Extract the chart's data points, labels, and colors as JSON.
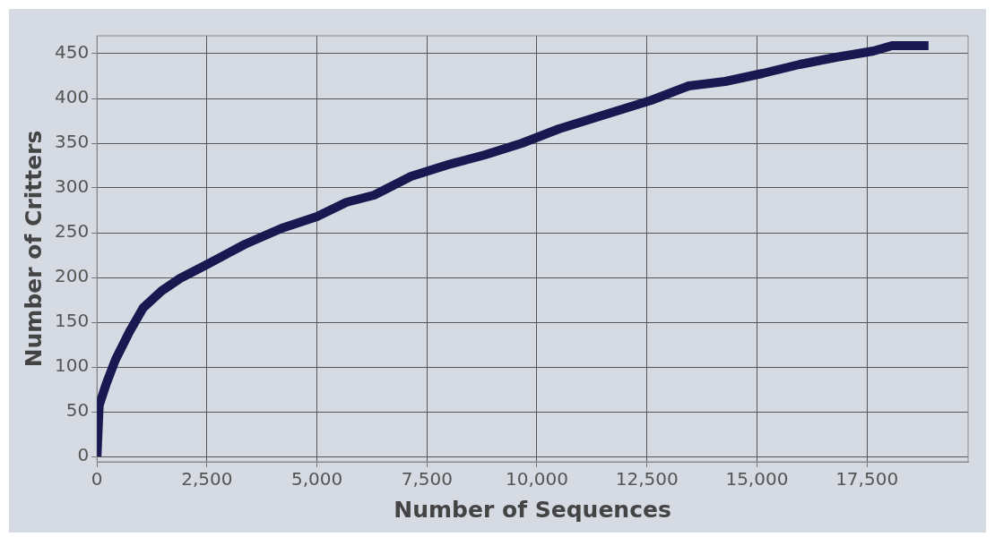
{
  "chart_data": {
    "type": "line",
    "xlabel": "Number of Sequences",
    "ylabel": "Number of Critters",
    "x": [
      0,
      50,
      210,
      420,
      735,
      1050,
      1470,
      1890,
      2520,
      3360,
      4200,
      5000,
      5670,
      6300,
      7140,
      7980,
      8820,
      9660,
      10500,
      11550,
      12600,
      13450,
      14280,
      15130,
      15970,
      16800,
      17650,
      18070,
      18900
    ],
    "series": [
      {
        "color": "#1a1850",
        "values": [
          0,
          57,
          81,
          108,
          139,
          166,
          185,
          199,
          215,
          237,
          255,
          268,
          284,
          292,
          313,
          326,
          337,
          350,
          366,
          382,
          398,
          414,
          419,
          428,
          438,
          446,
          453,
          459,
          459
        ]
      }
    ],
    "xlim": [
      0,
      19800
    ],
    "xticks": [
      {
        "value": 0,
        "label": "0"
      },
      {
        "value": 2500,
        "label": "2,500"
      },
      {
        "value": 5000,
        "label": "5,000"
      },
      {
        "value": 7500,
        "label": "7,500"
      },
      {
        "value": 10000,
        "label": "10,000"
      },
      {
        "value": 12500,
        "label": "12,500"
      },
      {
        "value": 15000,
        "label": "15,000"
      },
      {
        "value": 17500,
        "label": "17,500"
      }
    ],
    "ylim": [
      -6,
      470
    ],
    "yticks": [
      0,
      50,
      100,
      150,
      200,
      250,
      300,
      350,
      400,
      450
    ],
    "grid": true,
    "legend": false,
    "marker": "none",
    "line_style": "solid"
  }
}
